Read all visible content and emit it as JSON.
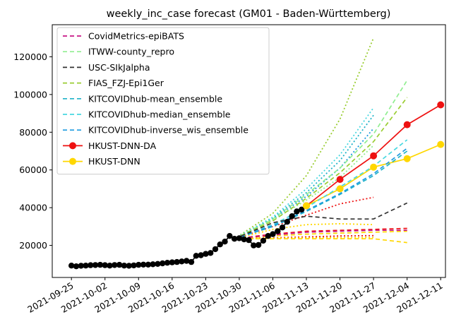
{
  "chart_data": {
    "type": "line",
    "title": "weekly_inc_case forecast (GM01 - Baden-Württemberg)",
    "xlabel": "",
    "ylabel": "",
    "x_range": [
      "2021-09-21",
      "2021-12-12"
    ],
    "ylim": [
      3000,
      137000
    ],
    "x_ticks": [
      "2021-09-25",
      "2021-10-02",
      "2021-10-09",
      "2021-10-16",
      "2021-10-23",
      "2021-10-30",
      "2021-11-06",
      "2021-11-13",
      "2021-11-20",
      "2021-11-27",
      "2021-12-04",
      "2021-12-11"
    ],
    "y_ticks": [
      20000,
      40000,
      60000,
      80000,
      100000,
      120000
    ],
    "y_tick_labels": [
      "20000",
      "40000",
      "60000",
      "80000",
      "100000",
      "120000"
    ],
    "grid": false,
    "legend_position": "top-left",
    "legend": [
      {
        "label": "CovidMetrics-epiBATS",
        "color": "#c71585",
        "style": "dashed",
        "marker": false
      },
      {
        "label": "ITWW-county_repro",
        "color": "#90ee90",
        "style": "dashed",
        "marker": false
      },
      {
        "label": "USC-SIkJalpha",
        "color": "#333333",
        "style": "dashed",
        "marker": false
      },
      {
        "label": "FIAS_FZJ-Epi1Ger",
        "color": "#9acd32",
        "style": "dashed",
        "marker": false
      },
      {
        "label": "KITCOVIDhub-mean_ensemble",
        "color": "#20b2c8",
        "style": "dashed",
        "marker": false
      },
      {
        "label": "KITCOVIDhub-median_ensemble",
        "color": "#48d8e0",
        "style": "dashed",
        "marker": false
      },
      {
        "label": "KITCOVIDhub-inverse_wis_ensemble",
        "color": "#1e9be0",
        "style": "dashed",
        "marker": false
      },
      {
        "label": "HKUST-DNN-DA",
        "color": "#ee1111",
        "style": "solid",
        "marker": true
      },
      {
        "label": "HKUST-DNN",
        "color": "#ffd700",
        "style": "solid",
        "marker": true
      }
    ],
    "observed": {
      "color": "#000000",
      "points": [
        [
          "2021-09-25",
          9300
        ],
        [
          "2021-09-26",
          8900
        ],
        [
          "2021-09-27",
          9200
        ],
        [
          "2021-09-28",
          9300
        ],
        [
          "2021-09-29",
          9500
        ],
        [
          "2021-09-30",
          9600
        ],
        [
          "2021-10-01",
          9700
        ],
        [
          "2021-10-02",
          9500
        ],
        [
          "2021-10-03",
          9300
        ],
        [
          "2021-10-04",
          9600
        ],
        [
          "2021-10-05",
          9700
        ],
        [
          "2021-10-06",
          9300
        ],
        [
          "2021-10-07",
          9200
        ],
        [
          "2021-10-08",
          9400
        ],
        [
          "2021-10-09",
          9700
        ],
        [
          "2021-10-10",
          9800
        ],
        [
          "2021-10-11",
          9800
        ],
        [
          "2021-10-12",
          10000
        ],
        [
          "2021-10-13",
          10200
        ],
        [
          "2021-10-14",
          10500
        ],
        [
          "2021-10-15",
          10800
        ],
        [
          "2021-10-16",
          11000
        ],
        [
          "2021-10-17",
          11200
        ],
        [
          "2021-10-18",
          11500
        ],
        [
          "2021-10-19",
          11800
        ],
        [
          "2021-10-20",
          11200
        ],
        [
          "2021-10-21",
          14500
        ],
        [
          "2021-10-22",
          14800
        ],
        [
          "2021-10-23",
          15500
        ],
        [
          "2021-10-24",
          16000
        ],
        [
          "2021-10-25",
          18000
        ],
        [
          "2021-10-26",
          20500
        ],
        [
          "2021-10-27",
          22000
        ],
        [
          "2021-10-28",
          25000
        ],
        [
          "2021-10-29",
          23500
        ],
        [
          "2021-10-30",
          23800
        ],
        [
          "2021-10-31",
          23200
        ],
        [
          "2021-11-01",
          22800
        ],
        [
          "2021-11-02",
          20000
        ],
        [
          "2021-11-03",
          20200
        ],
        [
          "2021-11-04",
          22500
        ],
        [
          "2021-11-05",
          25000
        ],
        [
          "2021-11-06",
          26000
        ],
        [
          "2021-11-07",
          27500
        ],
        [
          "2021-11-08",
          29500
        ],
        [
          "2021-11-09",
          32500
        ],
        [
          "2021-11-10",
          35500
        ],
        [
          "2021-11-11",
          38000
        ],
        [
          "2021-11-12",
          39000
        ]
      ]
    },
    "series": [
      {
        "name": "HKUST-DNN-DA",
        "style": "solid",
        "marker": true,
        "color": "#ee1111",
        "points": [
          [
            "2021-11-13",
            41000
          ],
          [
            "2021-11-20",
            55000
          ],
          [
            "2021-11-27",
            67500
          ],
          [
            "2021-12-04",
            84000
          ],
          [
            "2021-12-11",
            94500
          ]
        ]
      },
      {
        "name": "HKUST-DNN",
        "style": "solid",
        "marker": true,
        "color": "#ffd700",
        "points": [
          [
            "2021-11-13",
            41000
          ],
          [
            "2021-11-20",
            50000
          ],
          [
            "2021-11-27",
            61500
          ],
          [
            "2021-12-04",
            66000
          ],
          [
            "2021-12-11",
            73500
          ]
        ]
      },
      {
        "name": "ITWW-county_repro",
        "style": "dashed",
        "color": "#90ee90",
        "points": [
          [
            "2021-10-29",
            23500
          ],
          [
            "2021-11-06",
            34000
          ],
          [
            "2021-11-13",
            47000
          ],
          [
            "2021-11-20",
            61000
          ],
          [
            "2021-11-27",
            79000
          ],
          [
            "2021-12-04",
            107500
          ]
        ]
      },
      {
        "name": "FIAS_FZJ-Epi1Ger",
        "style": "dashed",
        "color": "#9acd32",
        "points": [
          [
            "2021-10-29",
            23500
          ],
          [
            "2021-11-06",
            33000
          ],
          [
            "2021-11-13",
            45000
          ],
          [
            "2021-11-20",
            58500
          ],
          [
            "2021-11-27",
            75000
          ],
          [
            "2021-12-04",
            98500
          ]
        ]
      },
      {
        "name": "KITCOVIDhub-median_ensemble",
        "style": "dashed",
        "color": "#48d8e0",
        "points": [
          [
            "2021-10-29",
            23500
          ],
          [
            "2021-11-06",
            31000
          ],
          [
            "2021-11-13",
            40000
          ],
          [
            "2021-11-20",
            51000
          ],
          [
            "2021-11-27",
            62000
          ],
          [
            "2021-12-04",
            76000
          ]
        ]
      },
      {
        "name": "KITCOVIDhub-mean_ensemble",
        "style": "dashed",
        "color": "#20b2c8",
        "points": [
          [
            "2021-10-29",
            23500
          ],
          [
            "2021-11-06",
            30000
          ],
          [
            "2021-11-13",
            38000
          ],
          [
            "2021-11-20",
            47000
          ],
          [
            "2021-11-27",
            57000
          ],
          [
            "2021-12-04",
            70000
          ]
        ]
      },
      {
        "name": "KITCOVIDhub-inverse_wis_ensemble",
        "style": "dashed",
        "color": "#1e9be0",
        "points": [
          [
            "2021-10-29",
            23500
          ],
          [
            "2021-11-06",
            30500
          ],
          [
            "2021-11-13",
            38500
          ],
          [
            "2021-11-20",
            47500
          ],
          [
            "2021-11-27",
            58000
          ],
          [
            "2021-12-04",
            71500
          ]
        ]
      },
      {
        "name": "USC-SIkJalpha",
        "style": "dashed",
        "color": "#333333",
        "points": [
          [
            "2021-10-29",
            23500
          ],
          [
            "2021-11-06",
            32000
          ],
          [
            "2021-11-13",
            35500
          ],
          [
            "2021-11-20",
            34000
          ],
          [
            "2021-11-27",
            34000
          ],
          [
            "2021-12-04",
            42500
          ]
        ]
      },
      {
        "name": "CovidMetrics-epiBATS",
        "style": "dashed",
        "color": "#c71585",
        "points": [
          [
            "2021-10-29",
            23500
          ],
          [
            "2021-11-06",
            25500
          ],
          [
            "2021-11-13",
            27000
          ],
          [
            "2021-11-20",
            27500
          ],
          [
            "2021-11-27",
            28000
          ],
          [
            "2021-12-04",
            28000
          ]
        ]
      }
    ],
    "extra_lines": [
      {
        "style": "dotted",
        "color": "#9acd32",
        "points": [
          [
            "2021-10-29",
            23500
          ],
          [
            "2021-11-06",
            37000
          ],
          [
            "2021-11-13",
            57000
          ],
          [
            "2021-11-20",
            87000
          ],
          [
            "2021-11-27",
            130000
          ]
        ]
      },
      {
        "style": "dotted",
        "color": "#20b2c8",
        "points": [
          [
            "2021-10-29",
            23500
          ],
          [
            "2021-11-06",
            34500
          ],
          [
            "2021-11-13",
            48000
          ],
          [
            "2021-11-20",
            65000
          ],
          [
            "2021-11-27",
            89000
          ]
        ]
      },
      {
        "style": "dotted",
        "color": "#48d8e0",
        "points": [
          [
            "2021-10-29",
            23500
          ],
          [
            "2021-11-06",
            35000
          ],
          [
            "2021-11-13",
            50000
          ],
          [
            "2021-11-20",
            68000
          ],
          [
            "2021-11-27",
            93000
          ]
        ]
      },
      {
        "style": "dotted",
        "color": "#1e9be0",
        "points": [
          [
            "2021-10-29",
            23500
          ],
          [
            "2021-11-06",
            34000
          ],
          [
            "2021-11-13",
            46000
          ],
          [
            "2021-11-20",
            61000
          ],
          [
            "2021-11-27",
            82000
          ]
        ]
      },
      {
        "style": "dotted",
        "color": "#90ee90",
        "points": [
          [
            "2021-10-29",
            23500
          ],
          [
            "2021-11-06",
            33500
          ],
          [
            "2021-11-13",
            44000
          ],
          [
            "2021-11-20",
            56000
          ],
          [
            "2021-11-27",
            73000
          ]
        ]
      },
      {
        "style": "dotted",
        "color": "#ee1111",
        "points": [
          [
            "2021-10-29",
            23500
          ],
          [
            "2021-11-06",
            30000
          ],
          [
            "2021-11-13",
            36000
          ],
          [
            "2021-11-20",
            42000
          ],
          [
            "2021-11-27",
            45500
          ]
        ]
      },
      {
        "style": "dotted",
        "color": "#ffd700",
        "points": [
          [
            "2021-10-29",
            23500
          ],
          [
            "2021-11-06",
            28500
          ],
          [
            "2021-11-13",
            31000
          ],
          [
            "2021-11-20",
            31500
          ],
          [
            "2021-11-27",
            31000
          ]
        ]
      },
      {
        "style": "dotted",
        "color": "#ee1111",
        "points": [
          [
            "2021-10-29",
            23500
          ],
          [
            "2021-11-06",
            24000
          ],
          [
            "2021-11-13",
            24500
          ],
          [
            "2021-11-20",
            25000
          ],
          [
            "2021-11-27",
            25200
          ]
        ]
      },
      {
        "style": "dotted",
        "color": "#ffd700",
        "points": [
          [
            "2021-10-29",
            23500
          ],
          [
            "2021-11-06",
            23800
          ],
          [
            "2021-11-13",
            24000
          ],
          [
            "2021-11-20",
            24100
          ],
          [
            "2021-11-27",
            24200
          ]
        ]
      },
      {
        "style": "dashed",
        "color": "#ee1111",
        "points": [
          [
            "2021-10-29",
            23500
          ],
          [
            "2021-11-06",
            26000
          ],
          [
            "2021-11-13",
            27500
          ],
          [
            "2021-11-20",
            28000
          ],
          [
            "2021-11-27",
            28500
          ],
          [
            "2021-12-04",
            29000
          ]
        ]
      },
      {
        "style": "dashed",
        "color": "#ffd700",
        "points": [
          [
            "2021-10-29",
            23500
          ],
          [
            "2021-11-06",
            23500
          ],
          [
            "2021-11-13",
            23500
          ],
          [
            "2021-11-20",
            23500
          ],
          [
            "2021-11-27",
            23500
          ],
          [
            "2021-12-04",
            21500
          ]
        ]
      },
      {
        "style": "dashed",
        "color": "#ffd700",
        "points": [
          [
            "2021-10-29",
            23500
          ],
          [
            "2021-11-06",
            25000
          ],
          [
            "2021-11-13",
            26000
          ],
          [
            "2021-11-20",
            26500
          ],
          [
            "2021-11-27",
            27000
          ],
          [
            "2021-12-04",
            27500
          ]
        ]
      }
    ]
  }
}
